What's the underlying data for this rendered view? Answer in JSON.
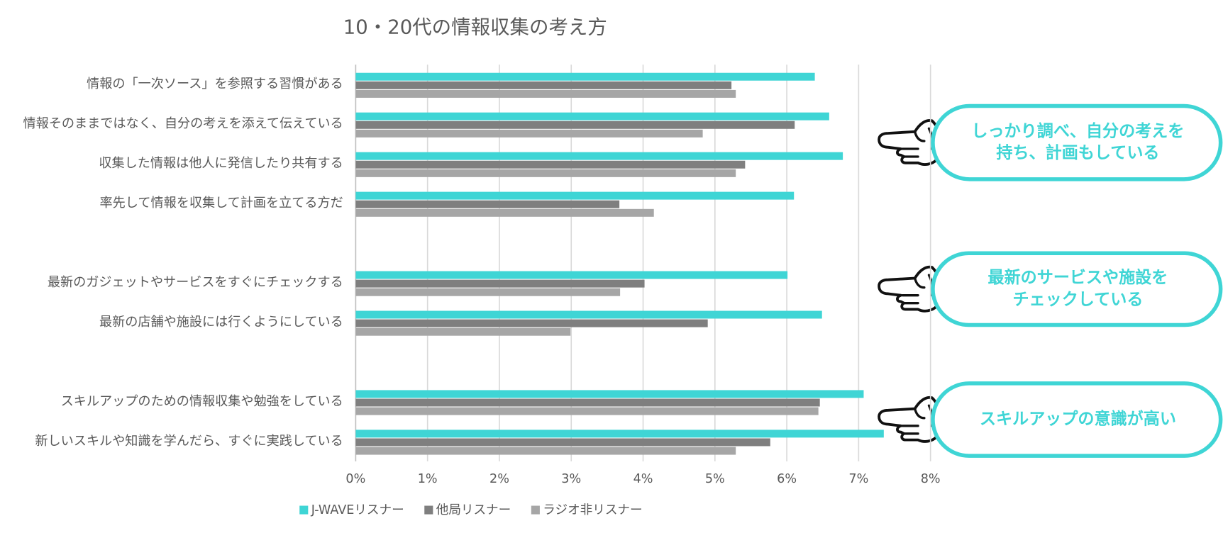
{
  "chart_data": {
    "type": "bar",
    "orientation": "horizontal",
    "title": "10・20代の情報収集の考え方",
    "categories": [
      "情報の「一次ソース」を参照する習慣がある",
      "情報そのままではなく、自分の考えを添えて伝えている",
      "収集した情報は他人に発信したり共有する",
      "率先して情報を収集して計画を立てる方だ",
      null,
      "最新のガジェットやサービスをすぐにチェックする",
      "最新の店舗や施設には行くようにしている",
      null,
      "スキルアップのための情報収集や勉強をしている",
      "新しいスキルや知識を学んだら、すぐに実践している"
    ],
    "series": [
      {
        "name": "J-WAVEリスナー",
        "color": "#3fd5d5",
        "values": [
          6.39,
          6.59,
          6.78,
          6.1,
          null,
          6.01,
          6.49,
          null,
          7.07,
          7.35
        ]
      },
      {
        "name": "他局リスナー",
        "color": "#7f7f7f",
        "values": [
          5.23,
          6.11,
          5.42,
          3.67,
          null,
          4.02,
          4.9,
          null,
          6.46,
          5.77
        ]
      },
      {
        "name": "ラジオ非リスナー",
        "color": "#a6a6a6",
        "values": [
          5.29,
          4.83,
          5.29,
          4.15,
          null,
          3.68,
          2.99,
          null,
          6.44,
          5.29
        ]
      }
    ],
    "xlim": [
      0,
      8
    ],
    "xticks": [
      {
        "value": 0,
        "label": "0%"
      },
      {
        "value": 1,
        "label": "1%"
      },
      {
        "value": 2,
        "label": "2%"
      },
      {
        "value": 3,
        "label": "3%"
      },
      {
        "value": 4,
        "label": "4%"
      },
      {
        "value": 5,
        "label": "5%"
      },
      {
        "value": 6,
        "label": "6%"
      },
      {
        "value": 7,
        "label": "7%"
      },
      {
        "value": 8,
        "label": "8%"
      }
    ],
    "grid": true,
    "legend": "bottom",
    "annotations": [
      {
        "lines": [
          "しっかり調べ、自分の考えを",
          "持ち、計画もしている"
        ]
      },
      {
        "lines": [
          "最新のサービスや施設を",
          "チェックしている"
        ]
      },
      {
        "lines": [
          "スキルアップの意識が高い"
        ]
      }
    ]
  }
}
